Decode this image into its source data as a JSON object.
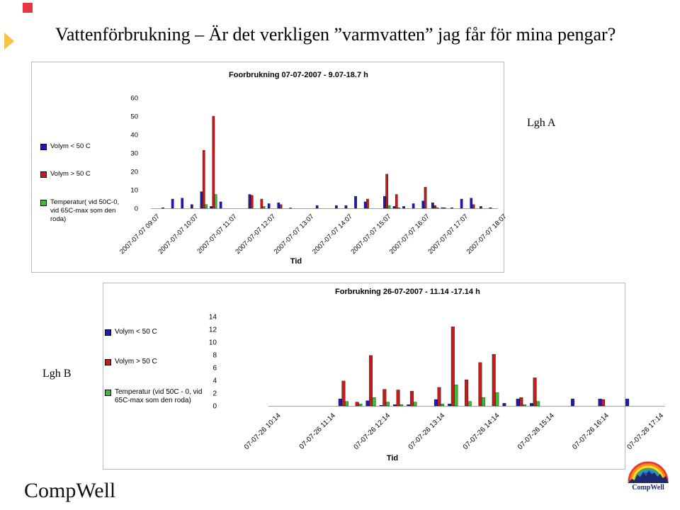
{
  "page": {
    "title": "Vattenförbrukning – Är det verkligen ”varmvatten” jag får för mina pengar?",
    "label_a": "Lgh A",
    "label_b": "Lgh B",
    "brand": "CompWell",
    "logo_text": "CompWell"
  },
  "colors": {
    "blue": "#1c1cb0",
    "red": "#c21c1c",
    "green": "#33c233",
    "corner_red": "#e8353f",
    "arrow_yellow": "#f6c342"
  },
  "chart_data": [
    {
      "type": "bar",
      "title": "Foorbrukning 07-07-2007 - 9.07-18.7 h",
      "xlabel": "Tid",
      "ylabel": "",
      "ylim": [
        0,
        60
      ],
      "yticks": [
        0,
        10,
        20,
        30,
        40,
        50,
        60
      ],
      "grid": false,
      "legend_position": "left",
      "tick_labels": [
        "2007-07-07 09:07",
        "2007-07-07 10:07",
        "2007-07-07 11:07",
        "2007-07-07 12:07",
        "2007-07-07 13:07",
        "2007-07-07 14:07",
        "2007-07-07 15:07",
        "2007-07-07 16:07",
        "2007-07-07 17:07",
        "2007-07-07 18:07"
      ],
      "tick_positions": [
        0,
        4,
        8,
        12,
        16,
        20,
        24,
        28,
        32,
        36
      ],
      "series": [
        {
          "name": "Volym < 50 C",
          "color": "blue",
          "values": [
            0,
            0.3,
            5,
            5.5,
            2,
            9,
            1,
            3.5,
            0,
            0,
            7.5,
            0,
            2.5,
            3,
            0,
            0,
            0,
            1.5,
            0,
            1.5,
            1.5,
            6.5,
            3.5,
            0,
            6.5,
            1,
            1,
            2.5,
            4,
            3,
            0.3,
            0.3,
            5,
            5.5,
            1,
            0.3
          ]
        },
        {
          "name": "Volym > 50 C",
          "color": "red",
          "values": [
            0,
            0,
            0,
            0,
            0,
            31.5,
            50,
            0,
            0,
            0,
            7,
            5,
            0,
            2,
            0.2,
            0,
            0,
            0,
            0,
            0,
            0,
            0,
            5,
            0,
            18.5,
            7.5,
            0,
            0,
            11.5,
            1.5,
            0.3,
            0,
            0,
            2,
            0,
            0
          ]
        },
        {
          "name": "Temperatur( vid 50C-0, vid 65C-max som den roda)",
          "color": "green",
          "values": [
            0,
            0,
            0,
            0,
            0,
            2,
            7.5,
            0,
            0,
            0,
            0,
            1,
            0,
            0,
            0,
            0,
            0,
            0,
            0,
            0,
            0,
            0,
            0,
            0,
            1.5,
            0.3,
            0,
            0,
            0,
            0.3,
            0,
            0,
            0,
            0,
            0,
            0
          ]
        }
      ]
    },
    {
      "type": "bar",
      "title": "Forbrukning 26-07-2007 - 11.14 -17.14 h",
      "xlabel": "Tid",
      "ylabel": "",
      "ylim": [
        0,
        14
      ],
      "yticks": [
        0,
        2,
        4,
        6,
        8,
        10,
        12,
        14
      ],
      "grid": false,
      "legend_position": "left",
      "tick_labels": [
        "07-07-26 10:14",
        "07-07-26 11:14",
        "07-07-26 12:14",
        "07-07-26 13:14",
        "07-07-26 14:14",
        "07-07-26 15:14",
        "07-07-26 16:14",
        "07-07-26 17:14"
      ],
      "tick_positions": [
        0,
        4,
        8,
        12,
        16,
        20,
        24,
        28
      ],
      "series": [
        {
          "name": "Volym < 50 C",
          "color": "blue",
          "values": [
            0,
            0,
            0,
            0,
            0,
            1.1,
            0,
            0.8,
            0.1,
            0.2,
            0.2,
            0,
            1,
            0.3,
            0,
            0,
            0,
            0.4,
            1.1,
            0.4,
            0,
            0,
            1.1,
            0,
            1.1,
            0,
            1.1,
            0,
            0
          ]
        },
        {
          "name": "Volym > 50 C",
          "color": "red",
          "values": [
            0,
            0,
            0,
            0,
            0,
            3.9,
            0.6,
            7.9,
            2.6,
            2.5,
            2.3,
            0,
            2.9,
            12.4,
            4.1,
            6.8,
            8.1,
            0,
            1.3,
            4.4,
            0,
            0,
            0,
            0,
            1.0,
            0,
            0,
            0,
            0
          ]
        },
        {
          "name": "Temperatur (vid 50C - 0, vid 65C-max som den roda)",
          "color": "green",
          "values": [
            0,
            0,
            0,
            0,
            0,
            0.7,
            0.3,
            1.3,
            0.6,
            0.2,
            0.6,
            0,
            0.3,
            3.3,
            0.7,
            1.3,
            2.1,
            0,
            0.2,
            0.7,
            0,
            0,
            0,
            0,
            0,
            0,
            0,
            0,
            0
          ]
        }
      ]
    }
  ]
}
